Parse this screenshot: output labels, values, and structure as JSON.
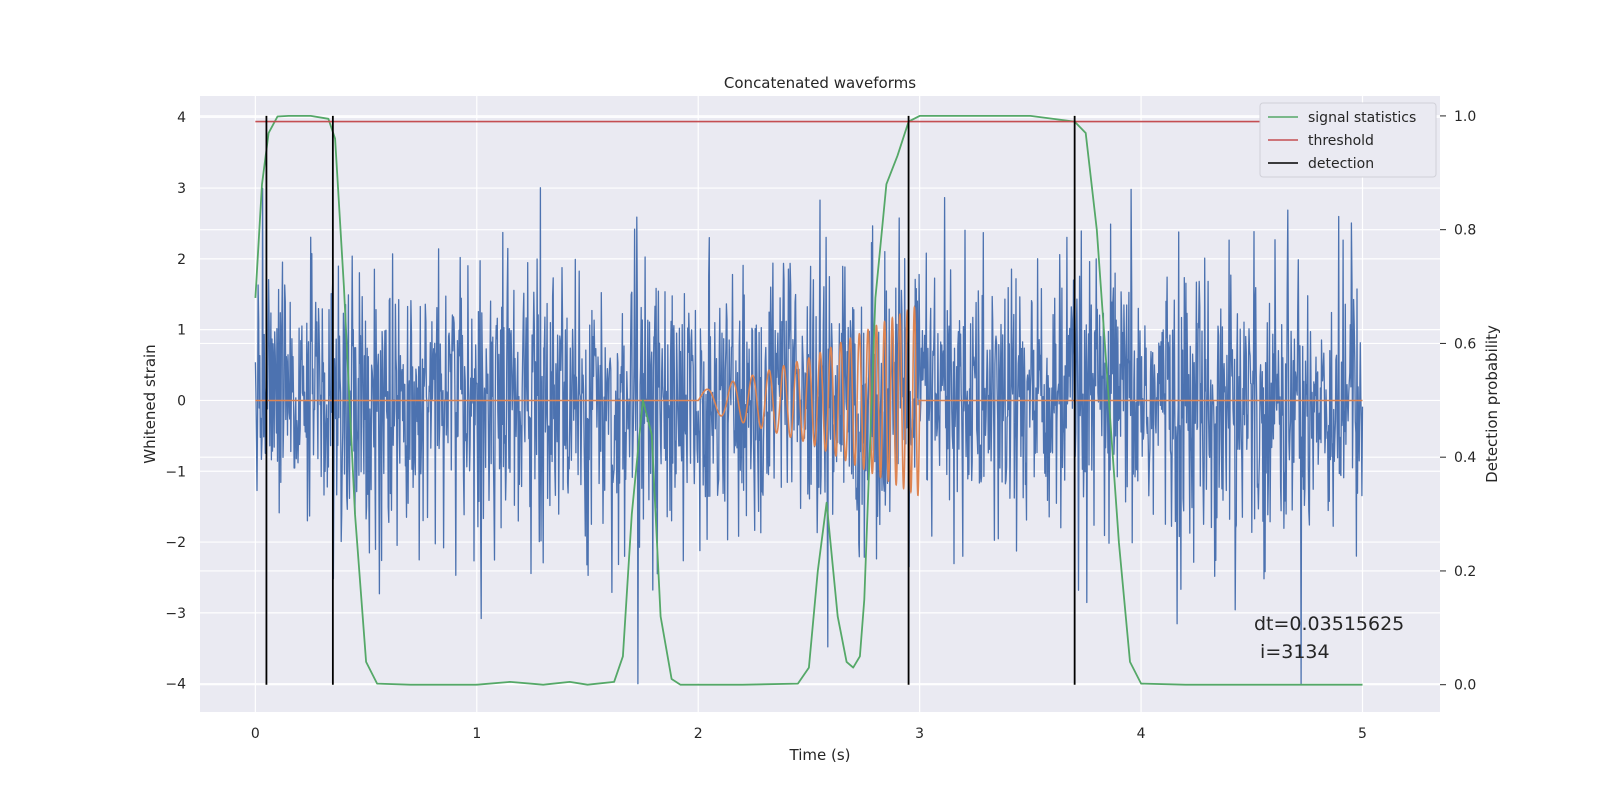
{
  "chart_data": {
    "type": "line",
    "title": "Concatenated waveforms",
    "xlabel": "Time (s)",
    "ylabel": "Whitened strain",
    "ylabel_right": "Detection probability",
    "xlim": [
      -0.25,
      5.35
    ],
    "ylim": [
      -4.4,
      4.3
    ],
    "ylim_right": [
      -0.048,
      1.035
    ],
    "x_ticks": [
      0,
      1,
      2,
      3,
      4,
      5
    ],
    "y_ticks": [
      -4,
      -3,
      -2,
      -1,
      0,
      1,
      2,
      3,
      4
    ],
    "y_ticks_right": [
      0.0,
      0.2,
      0.4,
      0.6,
      0.8,
      1.0
    ],
    "grid": true,
    "legend_position": "top-right",
    "colors": {
      "background": "#eaeaf2",
      "strain": "#4c72b0",
      "injected": "#dd8452",
      "signal_statistics": "#55a868",
      "threshold": "#c44e52",
      "detection": "#000000"
    },
    "series": [
      {
        "key": "strain",
        "axis": "left",
        "x_range": [
          0,
          5
        ],
        "sample_count": 2000,
        "std_estimate": 0.95,
        "y_range": [
          -4,
          3.9
        ]
      },
      {
        "key": "injected",
        "axis": "left",
        "description_points": {
          "x": [
            0,
            2.0,
            2.5,
            2.8,
            3.0,
            3.0,
            5.0
          ],
          "envelope": [
            0,
            0.12,
            0.6,
            1.05,
            1.35,
            0,
            0
          ]
        }
      },
      {
        "key": "signal_statistics",
        "name": "signal statistics",
        "axis": "right",
        "x": [
          0,
          0.03,
          0.06,
          0.1,
          0.15,
          0.25,
          0.33,
          0.36,
          0.4,
          0.45,
          0.5,
          0.55,
          0.7,
          1.0,
          1.15,
          1.3,
          1.42,
          1.5,
          1.62,
          1.66,
          1.7,
          1.75,
          1.79,
          1.83,
          1.88,
          1.92,
          2.0,
          2.2,
          2.45,
          2.5,
          2.54,
          2.58,
          2.63,
          2.67,
          2.7,
          2.73,
          2.75,
          2.8,
          2.85,
          2.9,
          2.95,
          3.0,
          3.5,
          3.7,
          3.75,
          3.8,
          3.9,
          3.95,
          4.0,
          4.2,
          5.0
        ],
        "y": [
          0.68,
          0.88,
          0.97,
          0.999,
          1.0,
          1.0,
          0.995,
          0.96,
          0.7,
          0.3,
          0.04,
          0.002,
          0.0,
          0.0,
          0.005,
          0.0,
          0.005,
          0.0,
          0.005,
          0.05,
          0.3,
          0.5,
          0.44,
          0.12,
          0.01,
          0.0,
          0.0,
          0.0,
          0.002,
          0.03,
          0.2,
          0.32,
          0.12,
          0.04,
          0.03,
          0.05,
          0.15,
          0.68,
          0.88,
          0.93,
          0.99,
          1.0,
          1.0,
          0.99,
          0.97,
          0.8,
          0.25,
          0.04,
          0.002,
          0.0,
          0.0
        ]
      },
      {
        "key": "threshold",
        "name": "threshold",
        "axis": "right",
        "x": [
          0,
          5
        ],
        "y": [
          0.99,
          0.99
        ]
      },
      {
        "key": "detection",
        "name": "detection",
        "axis": "right",
        "x_positions": [
          0.05,
          0.35,
          2.95,
          3.7
        ],
        "y_range": [
          0,
          1.0
        ]
      }
    ],
    "legend_entries": [
      "signal statistics",
      "threshold",
      "detection"
    ],
    "annotation": {
      "line1": "dt=0.03515625",
      "line2": " i=3134",
      "x": 4.5,
      "y": -3.0
    }
  }
}
